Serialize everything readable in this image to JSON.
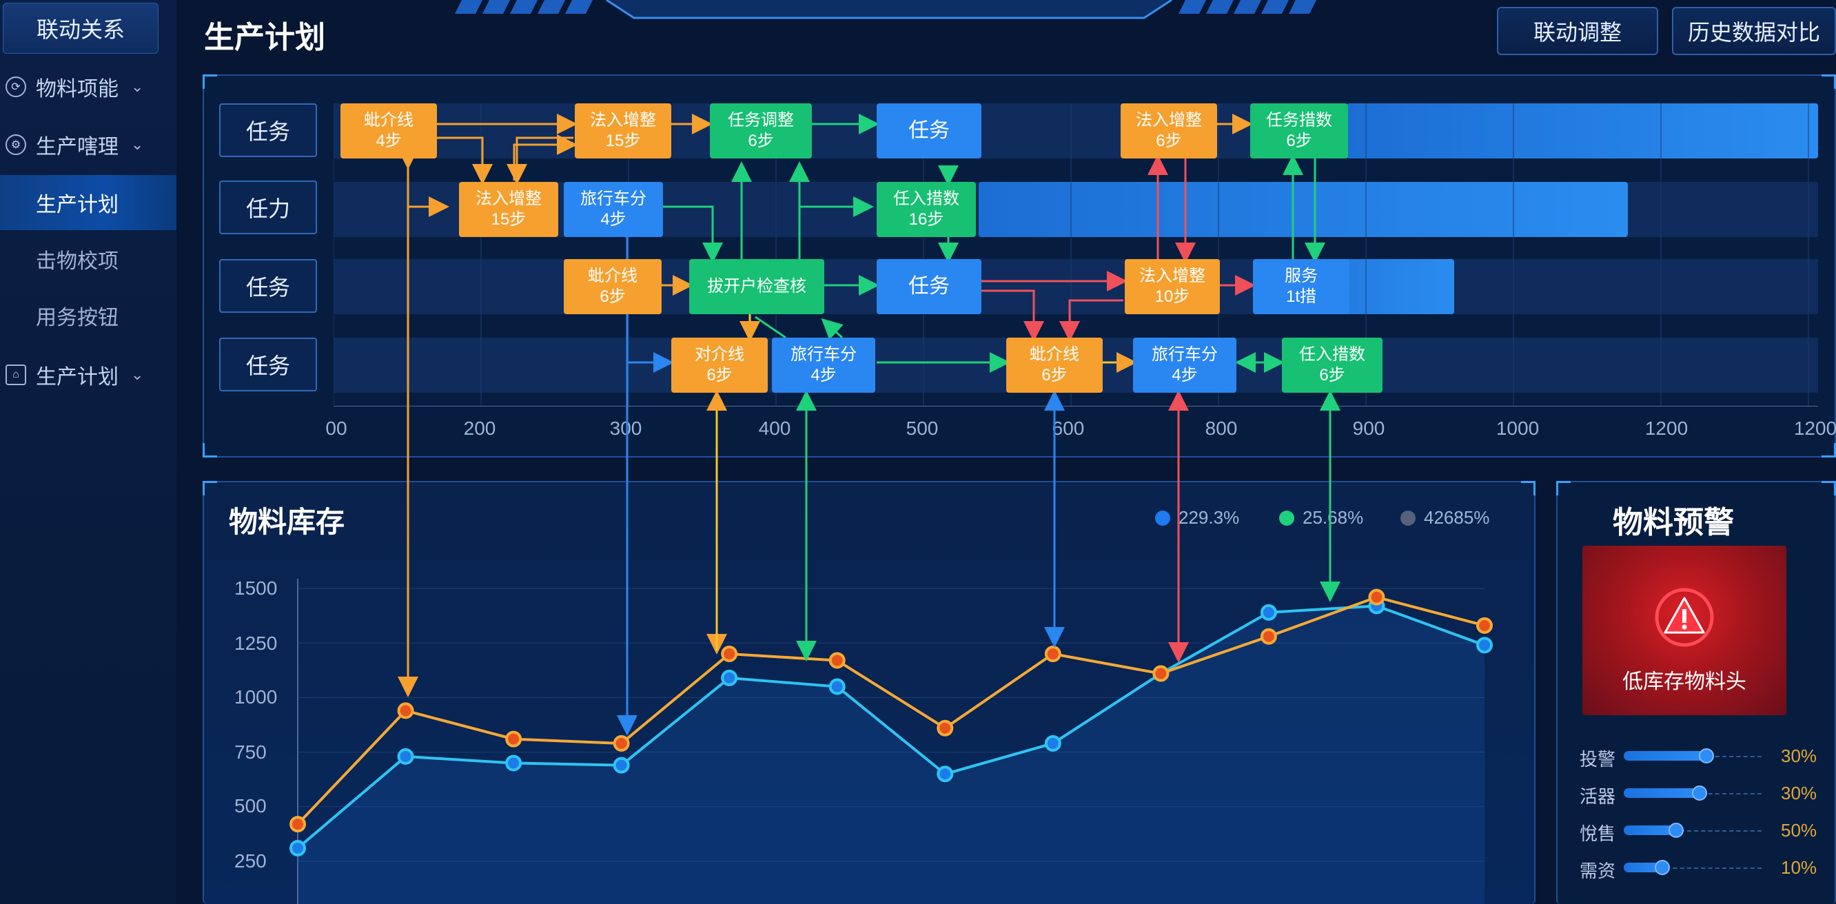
{
  "sidebar": {
    "top_label": "联动关系",
    "items": [
      {
        "label": "物料项能",
        "icon": "settings-icon"
      },
      {
        "label": "生产嗐理",
        "icon": "gear-icon"
      },
      {
        "label": "生产计划",
        "active": true
      },
      {
        "label": "击物校项"
      },
      {
        "label": "用务按钮"
      },
      {
        "label": "生产计划",
        "icon": "home-icon"
      }
    ]
  },
  "header": {
    "title": "生产计划",
    "buttons": [
      "联动调整",
      "历史数据对比"
    ]
  },
  "gantt": {
    "rows": [
      "任务",
      "任力",
      "任务",
      "任务"
    ],
    "x_ticks": [
      "00",
      "200",
      "300",
      "400",
      "500",
      "600",
      "800",
      "900",
      "1000",
      "1200",
      "1200"
    ],
    "nodes": [
      {
        "id": "a1",
        "title": "蚍介线",
        "sub": "4步",
        "color": "orange"
      },
      {
        "id": "a2",
        "title": "法入增整",
        "sub": "15步",
        "color": "orange"
      },
      {
        "id": "a3",
        "title": "任务调整",
        "sub": "6步",
        "color": "green"
      },
      {
        "id": "a4",
        "title": "任务",
        "sub": "",
        "color": "blue"
      },
      {
        "id": "a5",
        "title": "法入增整",
        "sub": "6步",
        "color": "orange"
      },
      {
        "id": "a6",
        "title": "任务措数",
        "sub": "6步",
        "color": "green"
      },
      {
        "id": "b1",
        "title": "法入增整",
        "sub": "15步",
        "color": "orange"
      },
      {
        "id": "b2",
        "title": "旅行车分",
        "sub": "4步",
        "color": "blue"
      },
      {
        "id": "b3",
        "title": "任入措数",
        "sub": "16步",
        "color": "green"
      },
      {
        "id": "c1",
        "title": "蚍介线",
        "sub": "6步",
        "color": "orange"
      },
      {
        "id": "c2",
        "title": "拔开户检查核",
        "sub": "",
        "color": "green"
      },
      {
        "id": "c3",
        "title": "任务",
        "sub": "",
        "color": "blue"
      },
      {
        "id": "c4",
        "title": "法入增整",
        "sub": "10步",
        "color": "orange"
      },
      {
        "id": "c5",
        "title": "服务",
        "sub": "1t措",
        "color": "blue"
      },
      {
        "id": "d1",
        "title": "对介线",
        "sub": "6步",
        "color": "orange"
      },
      {
        "id": "d2",
        "title": "旅行车分",
        "sub": "4步",
        "color": "blue"
      },
      {
        "id": "d3",
        "title": "蚍介线",
        "sub": "6步",
        "color": "orange"
      },
      {
        "id": "d4",
        "title": "旅行车分",
        "sub": "4步",
        "color": "blue"
      },
      {
        "id": "d5",
        "title": "任入措数",
        "sub": "6步",
        "color": "green"
      }
    ]
  },
  "inventory": {
    "title": "物料库存",
    "legend": [
      {
        "label": "229.3%",
        "color": "#1e7bf0"
      },
      {
        "label": "25.68%",
        "color": "#1fd07c"
      },
      {
        "label": "42685%",
        "color": "#56627a"
      }
    ]
  },
  "chart_data": {
    "type": "line",
    "y_ticks": [
      "1500",
      "1250",
      "1000",
      "750",
      "500",
      "250"
    ],
    "ylim": [
      200,
      1550
    ],
    "series": [
      {
        "color": "#f5a935",
        "values": [
          420,
          940,
          810,
          790,
          1200,
          1170,
          860,
          1200,
          1110,
          1280,
          1460,
          1330
        ]
      },
      {
        "color": "#2ec4f2",
        "values": [
          310,
          730,
          700,
          690,
          1090,
          1050,
          650,
          790,
          1110,
          1390,
          1420,
          1240
        ]
      }
    ]
  },
  "warning": {
    "title": "物料预警",
    "alert_text": "低库存物料头",
    "items": [
      {
        "label": "投警",
        "level": 0.6,
        "value": "30%"
      },
      {
        "label": "活器",
        "level": 0.55,
        "value": "30%"
      },
      {
        "label": "悅售",
        "level": 0.38,
        "value": "50%"
      },
      {
        "label": "需资",
        "level": 0.28,
        "value": "10%"
      }
    ]
  }
}
